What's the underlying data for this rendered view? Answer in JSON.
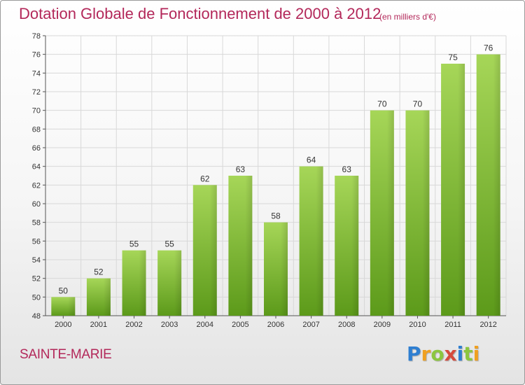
{
  "title": "Dotation Globale de Fonctionnement de 2000 à 2012",
  "subtitle": "(en milliers d'€)",
  "commune": "SAINTE-MARIE",
  "logo": {
    "letters": [
      "P",
      "r",
      "o",
      "x",
      "i",
      "t",
      "i"
    ],
    "colors": [
      "#2f7fd1",
      "#f0a020",
      "#8cc63f",
      "#d64a3c",
      "#2f7fd1",
      "#8cc63f",
      "#f0a020"
    ]
  },
  "colors": {
    "title": "#b3285a",
    "bar_top": "#a6d658",
    "bar_bottom": "#5c9a1a",
    "grid": "#d8d8d8"
  },
  "chart_data": {
    "type": "bar",
    "title": "Dotation Globale de Fonctionnement de 2000 à 2012",
    "subtitle": "(en milliers d'€)",
    "categories": [
      "2000",
      "2001",
      "2002",
      "2003",
      "2004",
      "2005",
      "2006",
      "2007",
      "2008",
      "2009",
      "2010",
      "2011",
      "2012"
    ],
    "values": [
      50,
      52,
      55,
      55,
      62,
      63,
      58,
      64,
      63,
      70,
      70,
      75,
      76
    ],
    "value_labels": [
      "50",
      "52",
      "55",
      "55",
      "62",
      "63",
      "58",
      "64",
      "63",
      "70",
      "70",
      "75",
      "76"
    ],
    "ylim": [
      48,
      78
    ],
    "yticks": [
      48,
      50,
      52,
      54,
      56,
      58,
      60,
      62,
      64,
      66,
      68,
      70,
      72,
      74,
      76,
      78
    ],
    "ytick_labels": [
      "48",
      "50",
      "52",
      "54",
      "56",
      "58",
      "60",
      "62",
      "64",
      "66",
      "68",
      "70",
      "72",
      "74",
      "76",
      "78"
    ],
    "grid": true,
    "legend": "none"
  }
}
